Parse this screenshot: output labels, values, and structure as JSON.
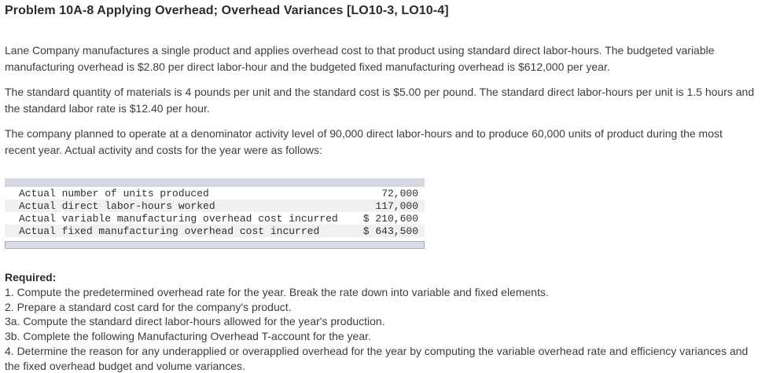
{
  "title": "Problem 10A-8 Applying Overhead; Overhead Variances [LO10-3, LO10-4]",
  "paragraphs": [
    "Lane Company manufactures a single product and applies overhead cost to that product using standard direct labor-hours. The budgeted variable manufacturing overhead is $2.80 per direct labor-hour and the budgeted fixed manufacturing overhead is $612,000 per year.",
    "The standard quantity of materials is 4 pounds per unit and the standard cost is $5.00 per pound. The standard direct labor-hours per unit is 1.5 hours and the standard labor rate is $12.40 per hour.",
    "The company planned to operate at a denominator activity level of 90,000 direct labor-hours and to produce 60,000 units of product during the most recent year. Actual activity and costs for the year were as follows:"
  ],
  "actuals_table": {
    "rows": [
      {
        "label": "Actual number of units produced",
        "value": "72,000"
      },
      {
        "label": "Actual direct labor-hours worked",
        "value": "117,000"
      },
      {
        "label": "Actual variable manufacturing overhead cost incurred",
        "value": "$ 210,600"
      },
      {
        "label": "Actual fixed manufacturing overhead cost incurred",
        "value": "$ 643,500"
      }
    ]
  },
  "required": {
    "heading": "Required:",
    "items": [
      "1. Compute the predetermined overhead rate for the year. Break the rate down into variable and fixed elements.",
      "2. Prepare a standard cost card for the company's product.",
      "3a. Compute the standard direct labor-hours allowed for the year's production.",
      "3b. Complete the following Manufacturing Overhead T-account for the year.",
      "4. Determine the reason for any underapplied or overapplied overhead for the year by computing the variable overhead rate and efficiency variances and the fixed overhead budget and volume variances."
    ]
  },
  "colors": {
    "table_strip": "#d6d9e2",
    "row_alt": "#f1f1f1",
    "scrollbar_fill": "#d9dce6",
    "scrollbar_border": "#a6adbf",
    "body_text": "#3d3d3d",
    "heading_text": "#2b2b2b"
  }
}
